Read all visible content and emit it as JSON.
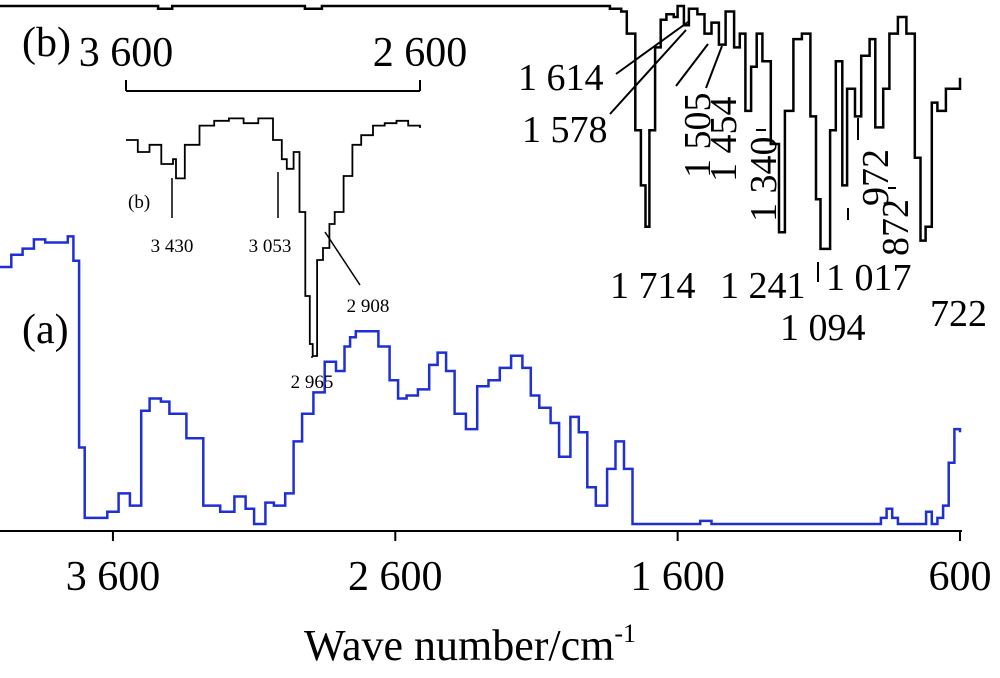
{
  "chart_data": {
    "type": "line",
    "xlabel": "Wave number/cm",
    "xlabel_superscript": "-1",
    "xlim": [
      4000,
      600
    ],
    "x_ticks": [
      {
        "value": 3600,
        "label": "3 600"
      },
      {
        "value": 2600,
        "label": "2 600"
      },
      {
        "value": 1600,
        "label": "1 600"
      },
      {
        "value": 600,
        "label": "600"
      }
    ],
    "series": [
      {
        "name": "(a)",
        "color": "#1f2fd6",
        "x": [
          4000,
          3960,
          3920,
          3880,
          3840,
          3800,
          3760,
          3740,
          3720,
          3700,
          3680,
          3660,
          3620,
          3580,
          3540,
          3500,
          3470,
          3430,
          3400,
          3340,
          3280,
          3220,
          3170,
          3130,
          3100,
          3060,
          3030,
          2990,
          2960,
          2930,
          2890,
          2850,
          2810,
          2780,
          2760,
          2740,
          2700,
          2660,
          2620,
          2590,
          2560,
          2520,
          2480,
          2450,
          2420,
          2390,
          2350,
          2310,
          2270,
          2230,
          2190,
          2150,
          2120,
          2090,
          2050,
          2020,
          1980,
          1950,
          1920,
          1890,
          1850,
          1820,
          1790,
          1760,
          1720,
          1650,
          1600,
          1560,
          1520,
          1480,
          1440,
          1400,
          1360,
          1320,
          1280,
          1240,
          1200,
          1160,
          1120,
          1080,
          1040,
          1000,
          960,
          920,
          880,
          860,
          840,
          820,
          800,
          760,
          720,
          700,
          680,
          660,
          640,
          620,
          600
        ],
        "y": [
          0.84,
          0.88,
          0.9,
          0.93,
          0.92,
          0.92,
          0.94,
          0.86,
          0.25,
          0.02,
          0.02,
          0.02,
          0.04,
          0.1,
          0.06,
          0.37,
          0.41,
          0.4,
          0.36,
          0.28,
          0.06,
          0.04,
          0.09,
          0.05,
          0.0,
          0.07,
          0.06,
          0.1,
          0.27,
          0.36,
          0.43,
          0.53,
          0.5,
          0.58,
          0.61,
          0.63,
          0.63,
          0.58,
          0.47,
          0.41,
          0.42,
          0.44,
          0.52,
          0.56,
          0.5,
          0.36,
          0.31,
          0.45,
          0.47,
          0.51,
          0.55,
          0.51,
          0.42,
          0.38,
          0.33,
          0.22,
          0.35,
          0.3,
          0.12,
          0.06,
          0.18,
          0.27,
          0.18,
          0.0,
          0.0,
          0.0,
          0.0,
          0.0,
          0.01,
          0.0,
          0.0,
          0.0,
          0.0,
          0.0,
          0.0,
          0.0,
          0.0,
          0.0,
          0.0,
          0.0,
          0.0,
          0.0,
          0.0,
          0.0,
          0.02,
          0.05,
          0.02,
          0.0,
          0.0,
          0.0,
          0.04,
          0.0,
          0.02,
          0.06,
          0.2,
          0.31,
          0.3
        ]
      },
      {
        "name": "(b)",
        "color": "#000000",
        "x": [
          4000,
          3620,
          3500,
          3440,
          3390,
          3000,
          2920,
          2860,
          2820,
          1900,
          1840,
          1800,
          1780,
          1750,
          1730,
          1714,
          1700,
          1680,
          1660,
          1640,
          1614,
          1600,
          1578,
          1560,
          1530,
          1505,
          1480,
          1454,
          1430,
          1400,
          1380,
          1360,
          1340,
          1320,
          1300,
          1270,
          1241,
          1220,
          1190,
          1160,
          1130,
          1110,
          1094,
          1060,
          1040,
          1017,
          1000,
          972,
          950,
          920,
          900,
          872,
          850,
          820,
          790,
          760,
          740,
          722,
          700,
          680,
          650,
          620,
          600
        ],
        "y": [
          1.0,
          1.0,
          1.0,
          0.99,
          1.0,
          1.0,
          0.99,
          1.0,
          1.0,
          1.0,
          0.99,
          0.98,
          0.9,
          0.55,
          0.35,
          0.2,
          0.55,
          0.85,
          0.95,
          0.97,
          0.96,
          1.0,
          0.93,
          0.99,
          0.97,
          0.9,
          0.94,
          0.86,
          0.98,
          0.85,
          0.9,
          0.62,
          0.78,
          0.9,
          0.8,
          0.5,
          0.18,
          0.62,
          0.88,
          0.9,
          0.6,
          0.3,
          0.12,
          0.55,
          0.8,
          0.35,
          0.7,
          0.6,
          0.82,
          0.88,
          0.56,
          0.7,
          0.9,
          0.96,
          0.9,
          0.45,
          0.15,
          0.2,
          0.65,
          0.62,
          0.7,
          0.7,
          0.74
        ]
      }
    ],
    "inset": {
      "label": "(b)",
      "xlim": [
        3600,
        2600
      ],
      "x_ticks": [
        {
          "value": 3600,
          "label": "3 600"
        },
        {
          "value": 2600,
          "label": "2 600"
        }
      ],
      "series": {
        "x": [
          3600,
          3560,
          3520,
          3480,
          3440,
          3430,
          3400,
          3350,
          3300,
          3250,
          3200,
          3150,
          3100,
          3070,
          3053,
          3030,
          3010,
          2990,
          2975,
          2965,
          2950,
          2930,
          2908,
          2890,
          2860,
          2830,
          2800,
          2760,
          2720,
          2680,
          2640,
          2600
        ],
        "y": [
          0.9,
          0.85,
          0.88,
          0.8,
          0.82,
          0.74,
          0.88,
          0.96,
          0.98,
          0.99,
          0.97,
          0.99,
          0.9,
          0.82,
          0.78,
          0.85,
          0.6,
          0.25,
          0.05,
          0.0,
          0.4,
          0.45,
          0.55,
          0.6,
          0.75,
          0.88,
          0.92,
          0.96,
          0.97,
          0.98,
          0.96,
          0.95
        ]
      },
      "annotations": [
        "3 430",
        "3 053",
        "2 965",
        "2 908"
      ]
    },
    "annotations_b": [
      "1 614",
      "1 578",
      "1 505",
      "1 454",
      "1 340",
      "972",
      "872",
      "1 714",
      "1 241",
      "1 017",
      "1 094",
      "722"
    ]
  }
}
